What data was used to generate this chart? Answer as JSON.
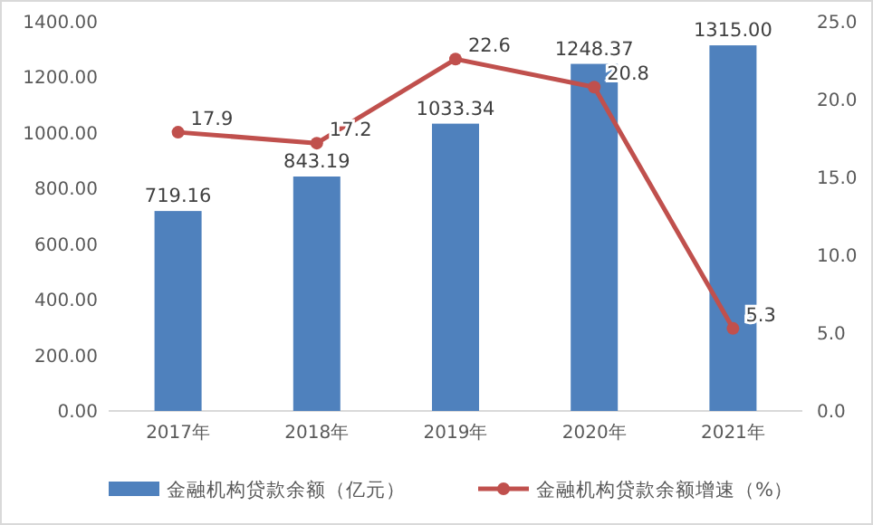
{
  "chart_data": {
    "type": "bar",
    "categories": [
      "2017年",
      "2018年",
      "2019年",
      "2020年",
      "2021年"
    ],
    "series": [
      {
        "name": "金融机构贷款余额（亿元）",
        "color": "#4f81bd",
        "values": [
          719.16,
          843.19,
          1033.34,
          1248.37,
          1315.0
        ],
        "value_labels": [
          "719.16",
          "843.19",
          "1033.34",
          "1248.37",
          "1315.00"
        ]
      },
      {
        "name": "金融机构贷款余额增速（%）",
        "type": "line",
        "axis": "y2",
        "color": "#c0504d",
        "marker": "circle",
        "values": [
          17.9,
          17.2,
          22.6,
          20.8,
          5.3
        ],
        "value_labels": [
          "17.9",
          "17.2",
          "22.6",
          "20.8",
          "5.3"
        ]
      }
    ],
    "ylim": [
      0,
      1400
    ],
    "yticks": [
      {
        "value": 0,
        "label": "0.00"
      },
      {
        "value": 200,
        "label": "200.00"
      },
      {
        "value": 400,
        "label": "400.00"
      },
      {
        "value": 600,
        "label": "600.00"
      },
      {
        "value": 800,
        "label": "800.00"
      },
      {
        "value": 1000,
        "label": "1000.00"
      },
      {
        "value": 1200,
        "label": "1200.00"
      },
      {
        "value": 1400,
        "label": "1400.00"
      }
    ],
    "y2lim": [
      0,
      25
    ],
    "y2ticks": [
      {
        "value": 0,
        "label": "0.0"
      },
      {
        "value": 5,
        "label": "5.0"
      },
      {
        "value": 10,
        "label": "10.0"
      },
      {
        "value": 15,
        "label": "15.0"
      },
      {
        "value": 20,
        "label": "20.0"
      },
      {
        "value": 25,
        "label": "25.0"
      }
    ],
    "legend": "bottom"
  }
}
